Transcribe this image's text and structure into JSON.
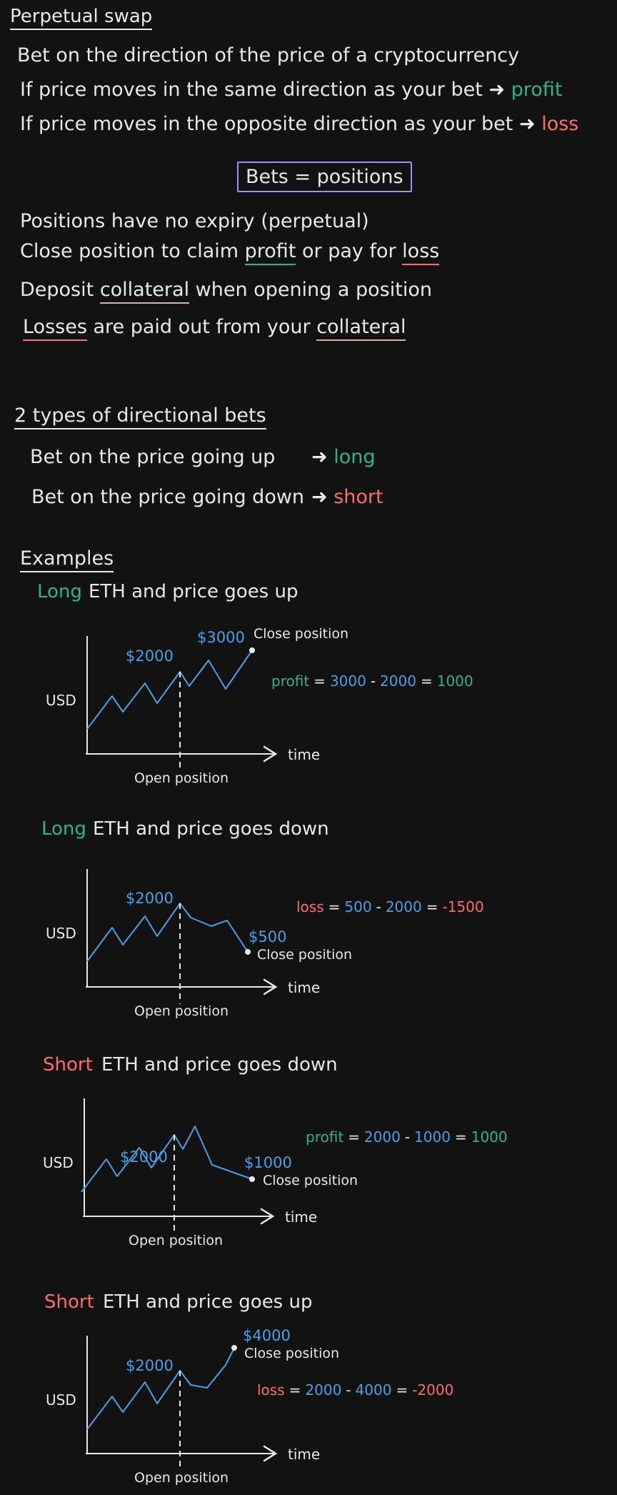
{
  "colors": {
    "background": "#121212",
    "text": "#e8e8e8",
    "profit": "#2fb388",
    "loss": "#ff6b6b",
    "value": "#4a9fe8",
    "box": "#a78bfa"
  },
  "title": "Perpetual swap",
  "intro": {
    "line1": "Bet on the direction of the price of a cryptocurrency",
    "line2": "If price moves in the same direction as your bet",
    "line2_result": "profit",
    "line3": "If price moves in the opposite direction as your bet",
    "line3_result": "loss"
  },
  "box_label": "Bets = positions",
  "rules": {
    "r1": "Positions have no expiry (perpetual)",
    "r2_a": "Close position to claim",
    "r2_b": "profit",
    "r2_c": "or pay for",
    "r2_d": "loss",
    "r3_a": "Deposit",
    "r3_b": "collateral",
    "r3_c": "when opening a position",
    "r4_a": "Losses",
    "r4_b": "are paid out from your",
    "r4_c": "collateral"
  },
  "types": {
    "heading": "2 types of directional bets",
    "up": "Bet on the price going up",
    "up_result": "long",
    "down": "Bet on the price going down",
    "down_result": "short"
  },
  "examples_heading": "Examples",
  "common": {
    "usd": "USD",
    "time": "time",
    "open": "Open position",
    "close": "Close position"
  },
  "examples": [
    {
      "pos": "Long",
      "rest": "ETH and price goes up",
      "open_price": "$2000",
      "close_price": "$3000",
      "eq_label": "profit",
      "eq_a": "3000",
      "eq_b": "2000",
      "eq_result": "1000"
    },
    {
      "pos": "Long",
      "rest": "ETH and price goes down",
      "open_price": "$2000",
      "close_price": "$500",
      "eq_label": "loss",
      "eq_a": "500",
      "eq_b": "2000",
      "eq_result": "-1500"
    },
    {
      "pos": "Short",
      "rest": "ETH and price goes down",
      "open_price": "$2000",
      "close_price": "$1000",
      "eq_label": "profit",
      "eq_a": "2000",
      "eq_b": "1000",
      "eq_result": "1000"
    },
    {
      "pos": "Short",
      "rest": "ETH and price goes up",
      "open_price": "$2000",
      "close_price": "$4000",
      "eq_label": "loss",
      "eq_a": "2000",
      "eq_b": "4000",
      "eq_result": "-2000"
    }
  ]
}
